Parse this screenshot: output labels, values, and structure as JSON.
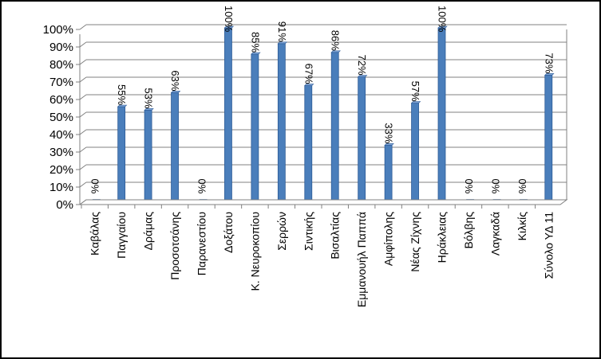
{
  "chart_data": {
    "type": "bar",
    "title": "",
    "xlabel": "",
    "ylabel": "",
    "ylim": [
      0,
      100
    ],
    "y_ticks": [
      "0%",
      "10%",
      "20%",
      "30%",
      "40%",
      "50%",
      "60%",
      "70%",
      "80%",
      "90%",
      "100%"
    ],
    "grid": true,
    "legend": "none",
    "categories": [
      "Καβάλας",
      "Παγγαίου",
      "Δράμας",
      "Προσοτσάνης",
      "Παρανεστίου",
      "Δοξάτου",
      "Κ. Νευροκοπίου",
      "Σερρών",
      "Σιντικής",
      "Βισαλτίας",
      "Εμμανουήλ Παππά",
      "Αμφίπολης",
      "Νέας Ζίχνης",
      "Ηράκλειας",
      "Βόλβης",
      "Λαγκαδά",
      "Κιλκίς",
      "Σύνολο ΥΔ 11"
    ],
    "values": [
      0,
      55,
      53,
      63,
      0,
      100,
      85,
      91,
      67,
      86,
      72,
      33,
      57,
      100,
      0,
      0,
      0,
      73
    ],
    "data_labels": [
      "0%",
      "55%",
      "53%",
      "63%",
      "0%",
      "100%",
      "85%",
      "91%",
      "67%",
      "86%",
      "72%",
      "33%",
      "57%",
      "100%",
      "0%",
      "0%",
      "0%",
      "73%"
    ],
    "bar_color": "#4a7ebb",
    "bar_edge_color": "#2c5a96"
  }
}
